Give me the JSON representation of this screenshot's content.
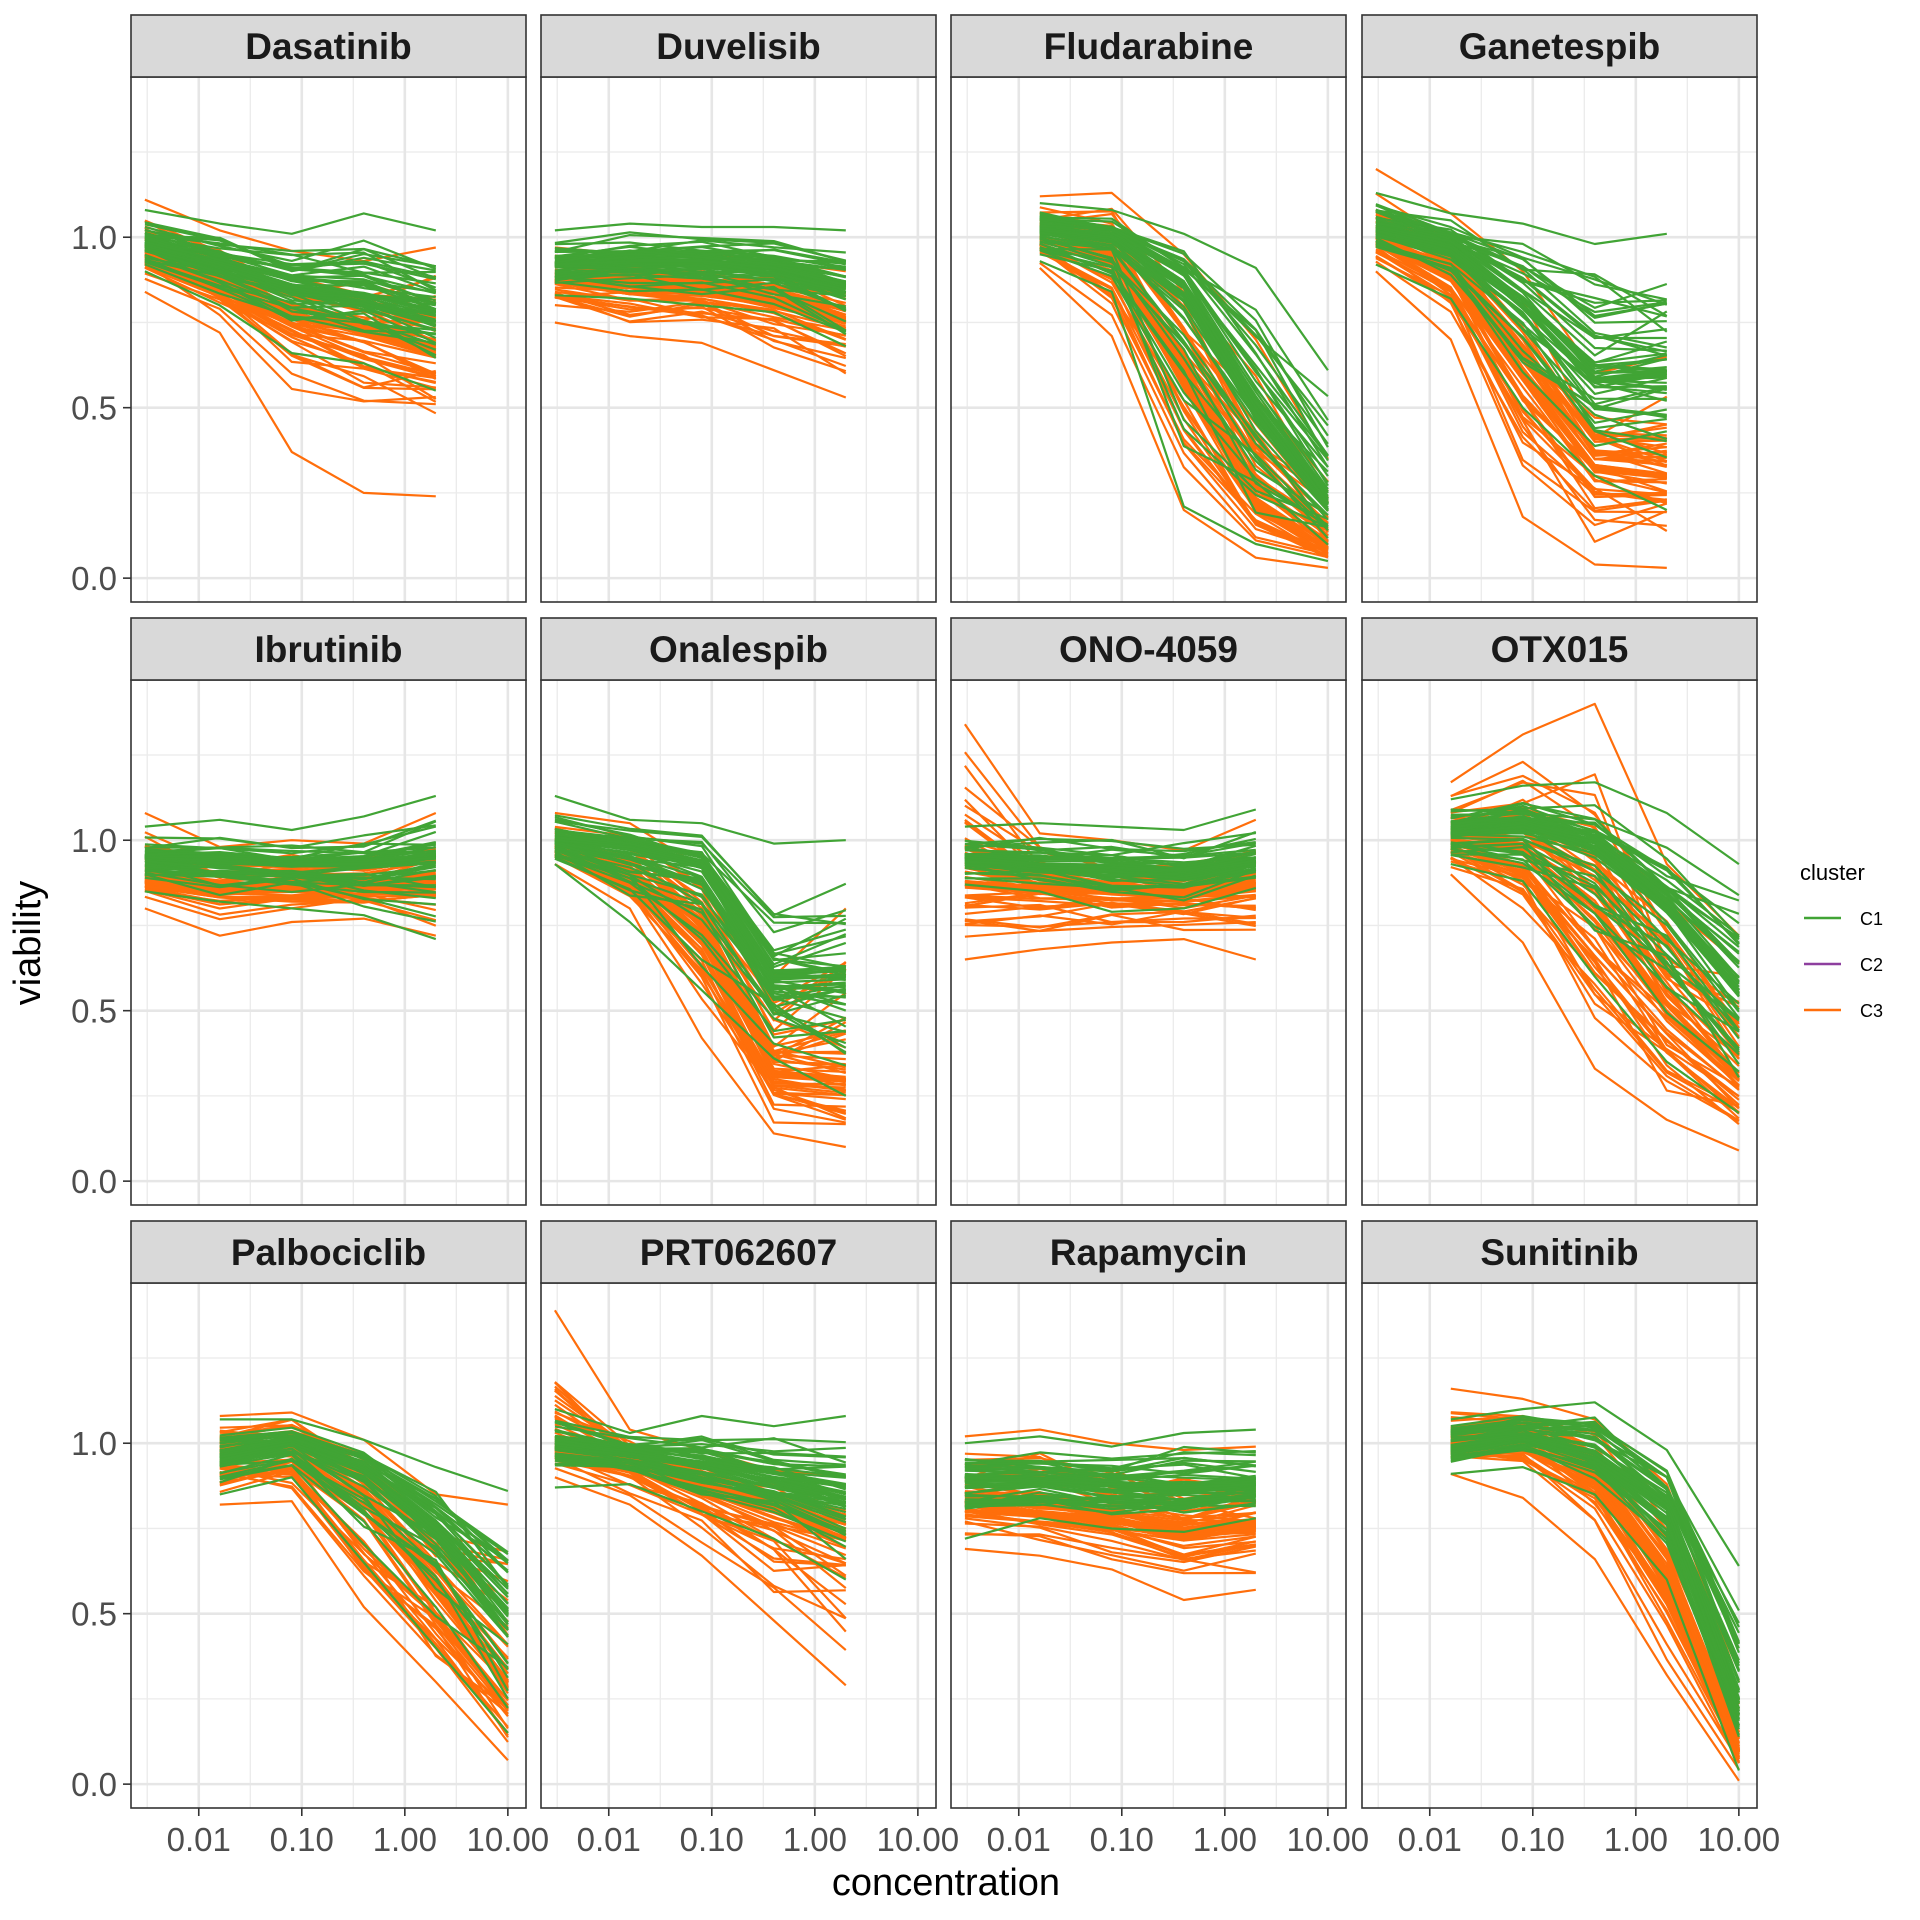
{
  "chart_data": {
    "type": "line",
    "layout": "facet-grid 3x4",
    "xlabel": "concentration",
    "ylabel": "viability",
    "x_scale": "log10",
    "x_ticks": [
      0.01,
      0.1,
      1,
      10
    ],
    "x_tick_labels": [
      "0.01",
      "0.10",
      "1.00",
      "10.00"
    ],
    "y_ticks": [
      0,
      0.5,
      1
    ],
    "y_tick_labels": [
      "0.0",
      "0.5",
      "1.0"
    ],
    "ylim": [
      -0.07,
      1.47
    ],
    "xlim": [
      0.0022,
      15
    ],
    "grid": true,
    "legend": {
      "title": "cluster",
      "placement": "right",
      "entries": [
        {
          "label": "C1",
          "color": "#41A435"
        },
        {
          "label": "C2",
          "color": "#8E3F9F"
        },
        {
          "label": "C3",
          "color": "#FF6E0B"
        }
      ]
    },
    "note": "Each facet shows many per-sample dose-response curves; values below are representative curves per cluster (median, upper and lower envelope) estimated from the plot.",
    "panels": [
      {
        "drug": "Dasatinib",
        "x": [
          0.003,
          0.016,
          0.08,
          0.4,
          2.0
        ],
        "series": [
          {
            "cluster": "C1",
            "median": [
              0.98,
              0.92,
              0.86,
              0.83,
              0.78
            ],
            "high": [
              1.08,
              1.04,
              1.01,
              1.07,
              1.02
            ],
            "low": [
              0.9,
              0.8,
              0.66,
              0.63,
              0.55
            ]
          },
          {
            "cluster": "C3",
            "median": [
              0.95,
              0.85,
              0.76,
              0.72,
              0.65
            ],
            "high": [
              1.11,
              1.02,
              0.96,
              0.93,
              0.97
            ],
            "low": [
              0.84,
              0.72,
              0.37,
              0.25,
              0.24
            ]
          }
        ]
      },
      {
        "drug": "Duvelisib",
        "x": [
          0.003,
          0.016,
          0.08,
          0.4,
          2.0
        ],
        "series": [
          {
            "cluster": "C1",
            "median": [
              0.92,
              0.93,
              0.93,
              0.91,
              0.86
            ],
            "high": [
              1.02,
              1.04,
              1.03,
              1.03,
              1.02
            ],
            "low": [
              0.83,
              0.82,
              0.8,
              0.78,
              0.68
            ]
          },
          {
            "cluster": "C3",
            "median": [
              0.87,
              0.85,
              0.84,
              0.81,
              0.75
            ],
            "high": [
              0.97,
              0.95,
              0.95,
              0.93,
              0.9
            ],
            "low": [
              0.75,
              0.71,
              0.69,
              0.61,
              0.53
            ]
          }
        ]
      },
      {
        "drug": "Fludarabine",
        "x": [
          0.016,
          0.08,
          0.4,
          2.0,
          10.0
        ],
        "series": [
          {
            "cluster": "C1",
            "median": [
              1.02,
              1.0,
              0.85,
              0.5,
              0.22
            ],
            "high": [
              1.1,
              1.08,
              1.01,
              0.91,
              0.61
            ],
            "low": [
              0.93,
              0.84,
              0.21,
              0.1,
              0.05
            ]
          },
          {
            "cluster": "C3",
            "median": [
              1.0,
              0.95,
              0.6,
              0.22,
              0.09
            ],
            "high": [
              1.12,
              1.13,
              0.95,
              0.7,
              0.35
            ],
            "low": [
              0.91,
              0.71,
              0.2,
              0.06,
              0.03
            ]
          }
        ]
      },
      {
        "drug": "Ganetespib",
        "x": [
          0.003,
          0.016,
          0.08,
          0.4,
          2.0
        ],
        "series": [
          {
            "cluster": "C1",
            "median": [
              1.02,
              0.97,
              0.8,
              0.58,
              0.6
            ],
            "high": [
              1.13,
              1.07,
              1.04,
              0.98,
              1.01
            ],
            "low": [
              0.92,
              0.82,
              0.5,
              0.3,
              0.2
            ]
          },
          {
            "cluster": "C3",
            "median": [
              1.0,
              0.9,
              0.6,
              0.33,
              0.3
            ],
            "high": [
              1.2,
              1.07,
              0.9,
              0.6,
              0.65
            ],
            "low": [
              0.9,
              0.7,
              0.18,
              0.04,
              0.03
            ]
          }
        ]
      },
      {
        "drug": "Ibrutinib",
        "x": [
          0.003,
          0.016,
          0.08,
          0.4,
          2.0
        ],
        "series": [
          {
            "cluster": "C1",
            "median": [
              0.95,
              0.94,
              0.93,
              0.93,
              0.95
            ],
            "high": [
              1.04,
              1.06,
              1.03,
              1.07,
              1.13
            ],
            "low": [
              0.85,
              0.82,
              0.8,
              0.78,
              0.71
            ]
          },
          {
            "cluster": "C3",
            "median": [
              0.88,
              0.86,
              0.86,
              0.86,
              0.87
            ],
            "high": [
              1.08,
              0.98,
              1.0,
              0.99,
              1.08
            ],
            "low": [
              0.8,
              0.72,
              0.76,
              0.77,
              0.72
            ]
          }
        ]
      },
      {
        "drug": "Onalespib",
        "x": [
          0.003,
          0.016,
          0.08,
          0.4,
          2.0
        ],
        "series": [
          {
            "cluster": "C1",
            "median": [
              1.0,
              0.98,
              0.93,
              0.6,
              0.6
            ],
            "high": [
              1.13,
              1.06,
              1.05,
              0.99,
              1.0
            ],
            "low": [
              0.93,
              0.76,
              0.56,
              0.36,
              0.25
            ]
          },
          {
            "cluster": "C3",
            "median": [
              0.98,
              0.9,
              0.72,
              0.32,
              0.3
            ],
            "high": [
              1.08,
              1.05,
              0.92,
              0.6,
              0.8
            ],
            "low": [
              0.93,
              0.8,
              0.42,
              0.14,
              0.1
            ]
          }
        ]
      },
      {
        "drug": "ONO-4059",
        "x": [
          0.003,
          0.016,
          0.08,
          0.4,
          2.0
        ],
        "series": [
          {
            "cluster": "C1",
            "median": [
              0.95,
              0.93,
              0.92,
              0.91,
              0.94
            ],
            "high": [
              1.04,
              1.05,
              1.04,
              1.03,
              1.09
            ],
            "low": [
              0.87,
              0.85,
              0.79,
              0.8,
              0.86
            ]
          },
          {
            "cluster": "C3",
            "median": [
              0.88,
              0.86,
              0.85,
              0.84,
              0.86
            ],
            "high": [
              1.34,
              1.02,
              1.0,
              0.97,
              1.06
            ],
            "low": [
              0.65,
              0.68,
              0.7,
              0.71,
              0.65
            ]
          }
        ]
      },
      {
        "drug": "OTX015",
        "x": [
          0.016,
          0.08,
          0.4,
          2.0,
          10.0
        ],
        "series": [
          {
            "cluster": "C1",
            "median": [
              1.02,
              1.04,
              0.98,
              0.8,
              0.55
            ],
            "high": [
              1.12,
              1.16,
              1.17,
              1.08,
              0.93
            ],
            "low": [
              0.93,
              0.88,
              0.6,
              0.35,
              0.2
            ]
          },
          {
            "cluster": "C3",
            "median": [
              1.0,
              0.98,
              0.8,
              0.52,
              0.3
            ],
            "high": [
              1.17,
              1.31,
              1.4,
              0.93,
              0.72
            ],
            "low": [
              0.9,
              0.7,
              0.33,
              0.18,
              0.09
            ]
          }
        ]
      },
      {
        "drug": "Palbociclib",
        "x": [
          0.016,
          0.08,
          0.4,
          2.0,
          10.0
        ],
        "series": [
          {
            "cluster": "C1",
            "median": [
              0.96,
              1.0,
              0.92,
              0.75,
              0.5
            ],
            "high": [
              1.07,
              1.07,
              1.01,
              0.93,
              0.86
            ],
            "low": [
              0.85,
              0.9,
              0.65,
              0.4,
              0.15
            ]
          },
          {
            "cluster": "C3",
            "median": [
              0.98,
              0.99,
              0.85,
              0.58,
              0.3
            ],
            "high": [
              1.08,
              1.09,
              1.01,
              0.85,
              0.82
            ],
            "low": [
              0.82,
              0.83,
              0.52,
              0.3,
              0.07
            ]
          }
        ]
      },
      {
        "drug": "PRT062607",
        "x": [
          0.003,
          0.016,
          0.08,
          0.4,
          2.0
        ],
        "series": [
          {
            "cluster": "C1",
            "median": [
              1.0,
              0.97,
              0.94,
              0.9,
              0.85
            ],
            "high": [
              1.1,
              1.03,
              1.08,
              1.05,
              1.08
            ],
            "low": [
              0.87,
              0.88,
              0.8,
              0.72,
              0.6
            ]
          },
          {
            "cluster": "C3",
            "median": [
              0.99,
              0.94,
              0.86,
              0.8,
              0.72
            ],
            "high": [
              1.39,
              1.04,
              0.98,
              0.92,
              0.9
            ],
            "low": [
              0.9,
              0.82,
              0.67,
              0.48,
              0.29
            ]
          }
        ]
      },
      {
        "drug": "Rapamycin",
        "x": [
          0.003,
          0.016,
          0.08,
          0.4,
          2.0
        ],
        "series": [
          {
            "cluster": "C1",
            "median": [
              0.9,
              0.89,
              0.88,
              0.87,
              0.88
            ],
            "high": [
              1.0,
              1.02,
              0.99,
              1.03,
              1.04
            ],
            "low": [
              0.72,
              0.78,
              0.75,
              0.74,
              0.78
            ]
          },
          {
            "cluster": "C3",
            "median": [
              0.83,
              0.8,
              0.78,
              0.74,
              0.76
            ],
            "high": [
              1.02,
              1.04,
              1.0,
              0.98,
              0.99
            ],
            "low": [
              0.69,
              0.67,
              0.63,
              0.54,
              0.57
            ]
          }
        ]
      },
      {
        "drug": "Sunitinib",
        "x": [
          0.016,
          0.08,
          0.4,
          2.0,
          10.0
        ],
        "series": [
          {
            "cluster": "C1",
            "median": [
              0.99,
              1.02,
              0.97,
              0.82,
              0.25
            ],
            "high": [
              1.07,
              1.1,
              1.12,
              0.98,
              0.64
            ],
            "low": [
              0.91,
              0.93,
              0.85,
              0.6,
              0.04
            ]
          },
          {
            "cluster": "C3",
            "median": [
              1.0,
              1.04,
              0.92,
              0.6,
              0.1
            ],
            "high": [
              1.16,
              1.13,
              1.07,
              0.88,
              0.3
            ],
            "low": [
              0.91,
              0.84,
              0.66,
              0.32,
              0.01
            ]
          }
        ]
      }
    ]
  }
}
